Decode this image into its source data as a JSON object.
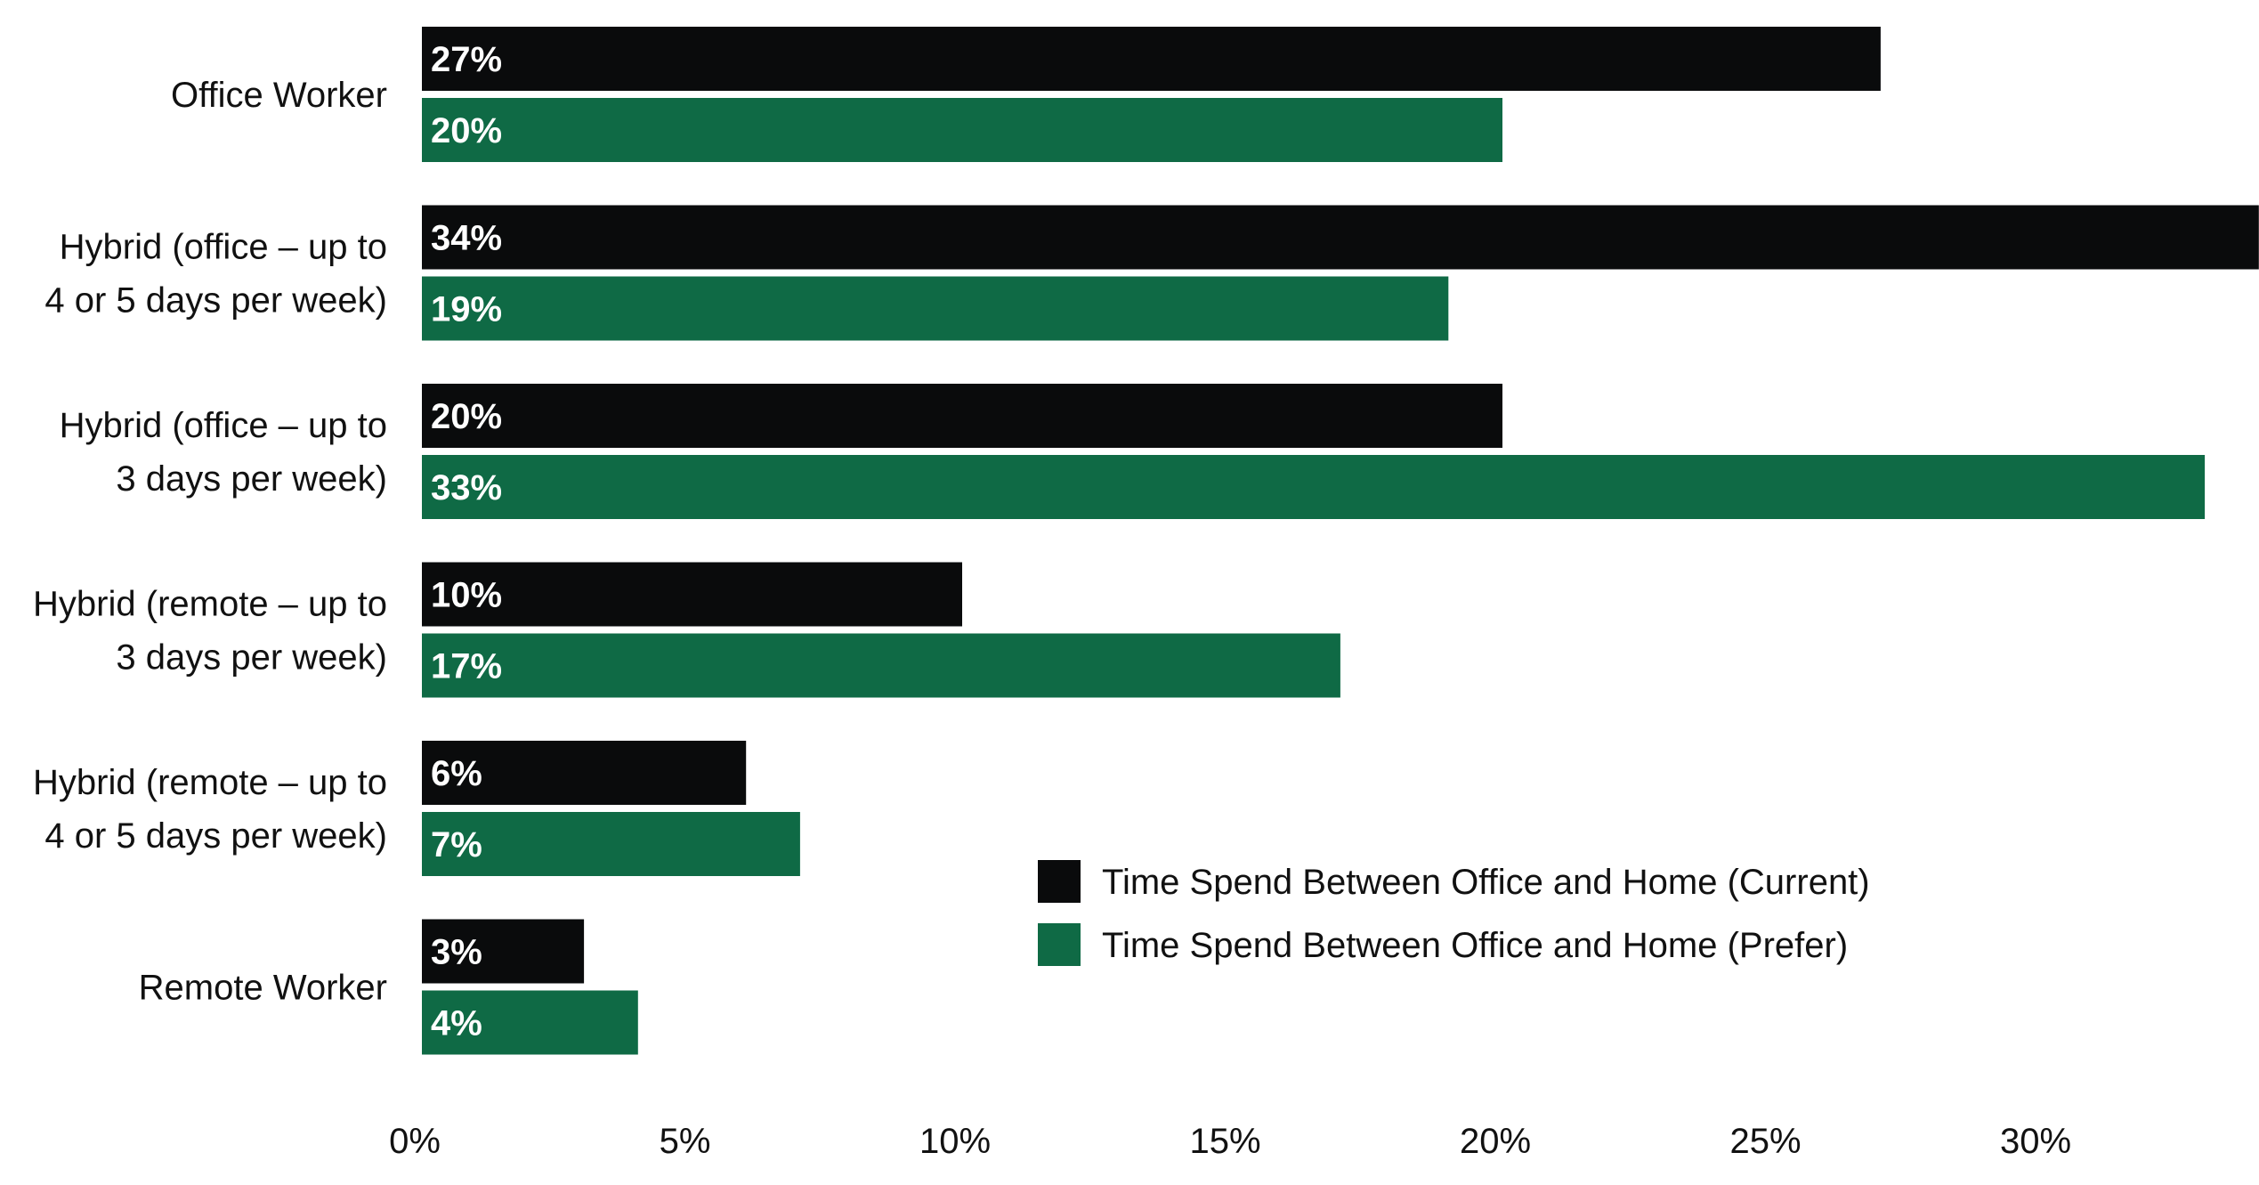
{
  "chart_data": {
    "type": "bar",
    "orientation": "horizontal",
    "title": "",
    "xlabel": "",
    "ylabel": "",
    "categories": [
      [
        "Office Worker"
      ],
      [
        "Hybrid (office – up to",
        "4 or 5 days per week)"
      ],
      [
        "Hybrid (office – up to",
        "3 days per week)"
      ],
      [
        "Hybrid (remote – up to",
        "3 days per week)"
      ],
      [
        "Hybrid (remote – up to",
        "4 or 5 days per week)"
      ],
      [
        "Remote Worker"
      ]
    ],
    "series": [
      {
        "name": "Time Spend Between Office and Home (Current)",
        "color": "#0a0b0c",
        "values": [
          27,
          34,
          20,
          10,
          6,
          3
        ],
        "labels": [
          "27%",
          "34%",
          "20%",
          "10%",
          "6%",
          "3%"
        ]
      },
      {
        "name": "Time Spend Between Office and Home (Prefer)",
        "color": "#0f6a45",
        "values": [
          20,
          19,
          33,
          17,
          7,
          4
        ],
        "labels": [
          "20%",
          "19%",
          "33%",
          "17%",
          "7%",
          "4%"
        ]
      }
    ],
    "xlim": [
      0,
      34
    ],
    "xticks": [
      0,
      5,
      10,
      15,
      20,
      25,
      30
    ],
    "xtick_labels": [
      "0%",
      "5%",
      "10%",
      "15%",
      "20%",
      "25%",
      "30%"
    ],
    "grid": false,
    "legend_position": "lower-right"
  }
}
